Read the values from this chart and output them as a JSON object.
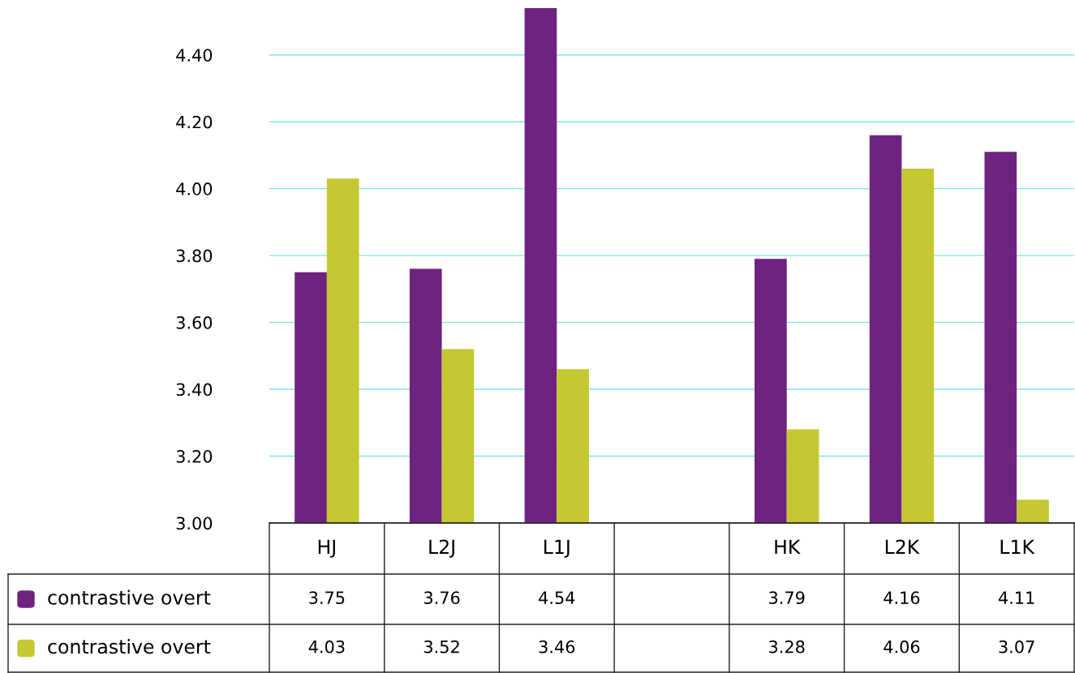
{
  "chart_data": {
    "type": "bar",
    "categories": [
      "HJ",
      "L2J",
      "L1J",
      null,
      "HK",
      "L2K",
      "L1K"
    ],
    "series": [
      {
        "name": "contrastive overt",
        "color": "#6f2380",
        "values": [
          3.75,
          3.76,
          4.54,
          null,
          3.79,
          4.16,
          4.11
        ]
      },
      {
        "name": "contrastive overt",
        "color": "#c4c832",
        "values": [
          4.03,
          3.52,
          3.46,
          null,
          3.28,
          4.06,
          3.07
        ]
      }
    ],
    "ylim": [
      3.0,
      4.54
    ],
    "yticks": [
      {
        "value": 3.0,
        "label": "3.00"
      },
      {
        "value": 3.2,
        "label": "3.20"
      },
      {
        "value": 3.4,
        "label": "3.40"
      },
      {
        "value": 3.6,
        "label": "3.60"
      },
      {
        "value": 3.8,
        "label": "3.80"
      },
      {
        "value": 4.0,
        "label": "4.00"
      },
      {
        "value": 4.2,
        "label": "4.20"
      },
      {
        "value": 4.4,
        "label": "4.40"
      }
    ],
    "grid": "y",
    "data_labels": true,
    "legend": "bottom left"
  }
}
